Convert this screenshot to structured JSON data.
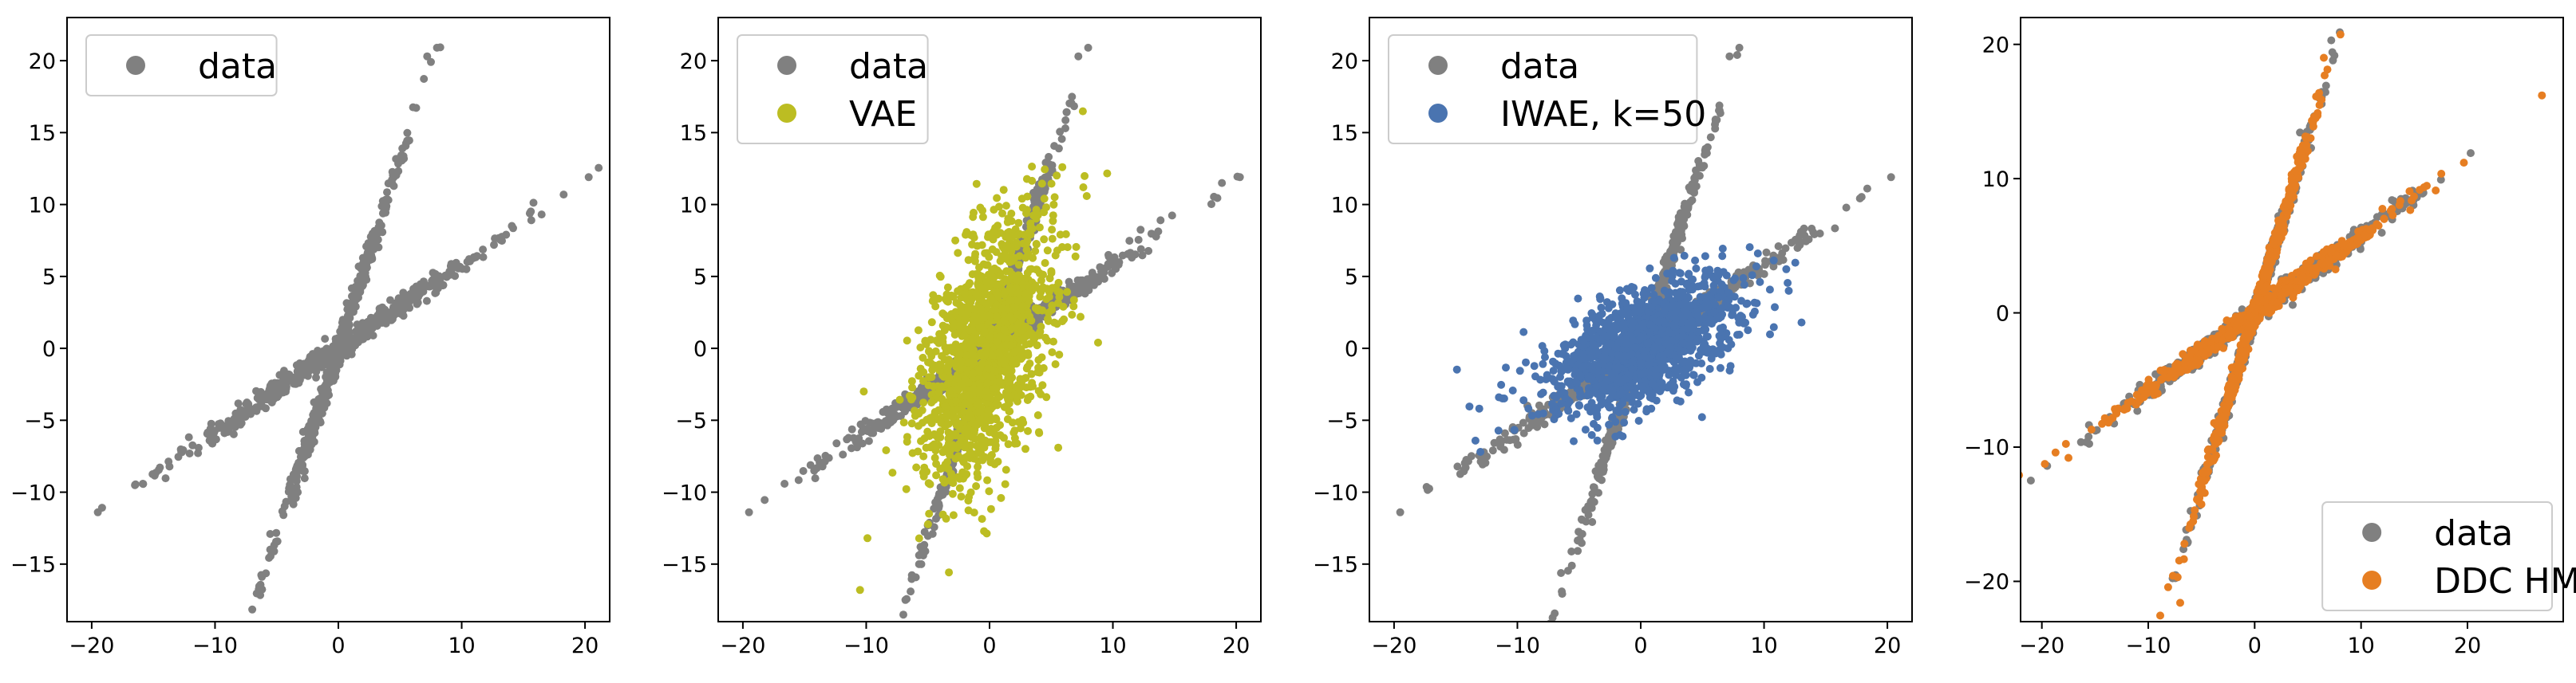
{
  "colors": {
    "data": "#808080",
    "VAE": "#bcbd22",
    "IWAE, k=50": "#4a74b0",
    "DDC HM": "#e67e22"
  },
  "chart_data": [
    {
      "type": "scatter",
      "title": "",
      "xlabel": "",
      "ylabel": "",
      "xlim": [
        -22,
        22
      ],
      "ylim": [
        -19,
        23
      ],
      "xticks": [
        -20,
        -10,
        0,
        10,
        20
      ],
      "yticks": [
        -15,
        -10,
        -5,
        0,
        5,
        10,
        15,
        20
      ],
      "x_tick_labels": [
        "−20",
        "−10",
        "0",
        "10",
        "20"
      ],
      "y_tick_labels": [
        "−15",
        "−10",
        "−5",
        "0",
        "5",
        "10",
        "15",
        "20"
      ],
      "legend": {
        "position": "top-left",
        "entries": [
          "data"
        ]
      },
      "series": [
        {
          "name": "data",
          "pattern": "x-shape",
          "outliers": [
            [
              -19.5,
              -11.4
            ],
            [
              20.3,
              11.9
            ],
            [
              7.2,
              20.3
            ],
            [
              8.0,
              20.9
            ],
            [
              -6.4,
              -16.9
            ]
          ]
        }
      ]
    },
    {
      "type": "scatter",
      "title": "",
      "xlabel": "",
      "ylabel": "",
      "xlim": [
        -22,
        22
      ],
      "ylim": [
        -19,
        23
      ],
      "xticks": [
        -20,
        -10,
        0,
        10,
        20
      ],
      "yticks": [
        -15,
        -10,
        -5,
        0,
        5,
        10,
        15,
        20
      ],
      "x_tick_labels": [
        "−20",
        "−10",
        "0",
        "10",
        "20"
      ],
      "y_tick_labels": [
        "−15",
        "−10",
        "−5",
        "0",
        "5",
        "10",
        "15",
        "20"
      ],
      "legend": {
        "position": "top-left",
        "entries": [
          "data",
          "VAE"
        ]
      },
      "series": [
        {
          "name": "data",
          "pattern": "x-shape",
          "outliers": [
            [
              -19.5,
              -11.4
            ],
            [
              20.3,
              11.9
            ],
            [
              7.2,
              20.3
            ],
            [
              8.0,
              20.9
            ],
            [
              -6.4,
              -16.9
            ]
          ]
        },
        {
          "name": "VAE",
          "pattern": "gaussian-blob",
          "center": [
            0,
            0
          ],
          "spread": [
            2.6,
            4.6
          ],
          "correlation": 0.45,
          "outliers": [
            [
              -10.5,
              -16.8
            ],
            [
              -9.9,
              -13.2
            ],
            [
              -10.2,
              -3.0
            ],
            [
              7.6,
              11.2
            ],
            [
              5.9,
              12.6
            ],
            [
              8.8,
              0.4
            ]
          ]
        }
      ]
    },
    {
      "type": "scatter",
      "title": "",
      "xlabel": "",
      "ylabel": "",
      "xlim": [
        -22,
        22
      ],
      "ylim": [
        -19,
        23
      ],
      "xticks": [
        -20,
        -10,
        0,
        10,
        20
      ],
      "yticks": [
        -15,
        -10,
        -5,
        0,
        5,
        10,
        15,
        20
      ],
      "x_tick_labels": [
        "−20",
        "−10",
        "0",
        "10",
        "20"
      ],
      "y_tick_labels": [
        "−15",
        "−10",
        "−5",
        "0",
        "5",
        "10",
        "15",
        "20"
      ],
      "legend": {
        "position": "top-left",
        "entries": [
          "data",
          "IWAE, k=50"
        ]
      },
      "series": [
        {
          "name": "data",
          "pattern": "x-shape",
          "outliers": [
            [
              -19.5,
              -11.4
            ],
            [
              20.3,
              11.9
            ],
            [
              7.2,
              20.3
            ],
            [
              8.0,
              20.9
            ],
            [
              -6.4,
              -16.9
            ]
          ]
        },
        {
          "name": "IWAE, k=50",
          "pattern": "gaussian-blob",
          "center": [
            0,
            0
          ],
          "spread": [
            3.8,
            2.3
          ],
          "correlation": 0.55,
          "outliers": [
            [
              -13.0,
              -7.2
            ],
            [
              -11.5,
              -3.4
            ],
            [
              11.8,
              5.5
            ],
            [
              12.0,
              4.0
            ],
            [
              9.5,
              6.6
            ]
          ]
        }
      ]
    },
    {
      "type": "scatter",
      "title": "",
      "xlabel": "",
      "ylabel": "",
      "xlim": [
        -22,
        29
      ],
      "ylim": [
        -23,
        22
      ],
      "xticks": [
        -20,
        -10,
        0,
        10,
        20
      ],
      "yticks": [
        -20,
        -10,
        0,
        10,
        20
      ],
      "x_tick_labels": [
        "−20",
        "−10",
        "0",
        "10",
        "20"
      ],
      "y_tick_labels": [
        "−20",
        "−10",
        "0",
        "10",
        "20"
      ],
      "legend": {
        "position": "bottom-right",
        "entries": [
          "data",
          "DDC HM"
        ]
      },
      "series": [
        {
          "name": "data",
          "pattern": "x-shape",
          "outliers": [
            [
              -19.5,
              -11.4
            ],
            [
              20.3,
              11.9
            ],
            [
              7.2,
              20.3
            ],
            [
              8.0,
              20.9
            ],
            [
              -6.4,
              -16.9
            ]
          ]
        },
        {
          "name": "DDC HM",
          "pattern": "x-shape",
          "outliers": [
            [
              27.0,
              16.2
            ],
            [
              -7.0,
              -21.6
            ],
            [
              -17.5,
              -10.8
            ],
            [
              -6.6,
              -17.2
            ],
            [
              6.5,
              19.0
            ]
          ]
        }
      ]
    }
  ]
}
